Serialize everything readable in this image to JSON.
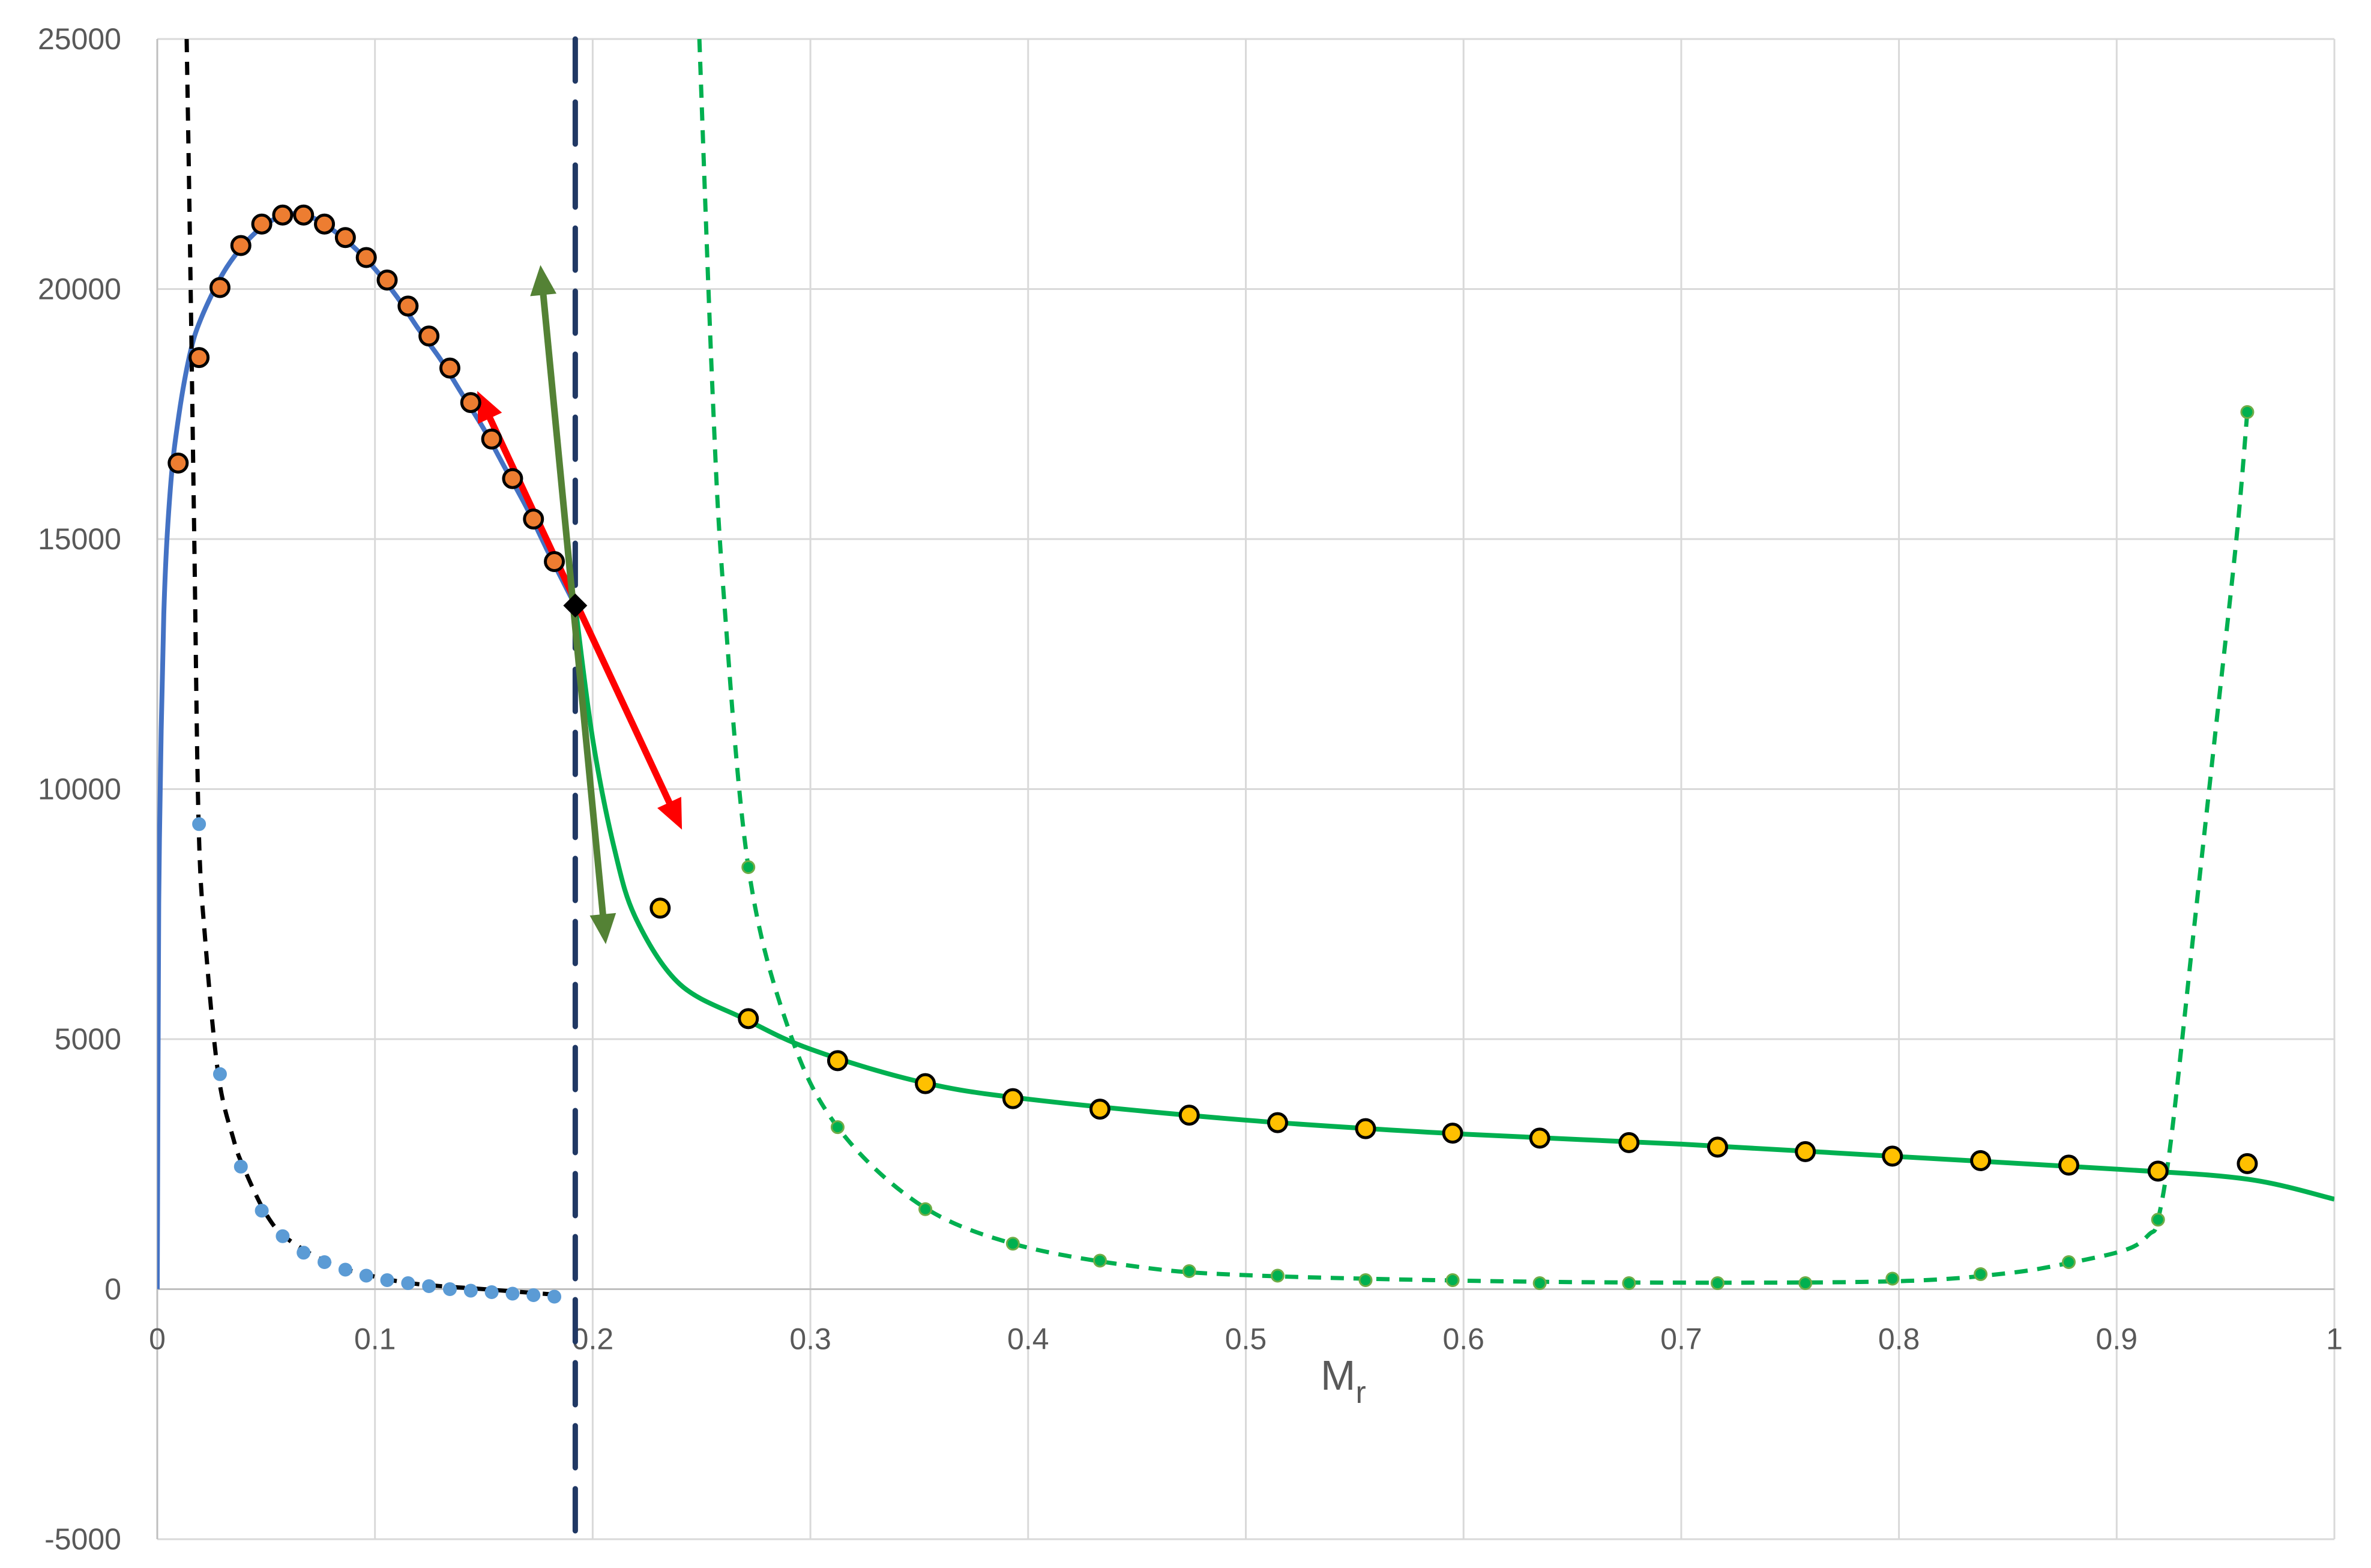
{
  "chart_data": {
    "type": "scatter",
    "title": "",
    "xlabel": "M",
    "xlabel_subscript": "r",
    "ylabel": "",
    "xlim": [
      0,
      1
    ],
    "ylim": [
      -5000,
      25000
    ],
    "xticks": [
      "0",
      "0.1",
      "0.2",
      "0.3",
      "0.4",
      "0.5",
      "0.6",
      "0.7",
      "0.8",
      "0.9",
      "1"
    ],
    "yticks": [
      "-5000",
      "0",
      "5000",
      "10000",
      "15000",
      "20000",
      "25000"
    ],
    "grid": true,
    "colors": {
      "blue": "#4472C4",
      "orange": "#ED7D31",
      "yellow": "#FFC000",
      "green": "#00B050",
      "dark_green": "#548235",
      "red": "#FF0000",
      "navy": "#203864",
      "black": "#000000",
      "grid": "#D9D9D9"
    },
    "series": [
      {
        "kind": "markers",
        "color": "#ED7D31",
        "marker": "large-circle",
        "x": [
          0.0096,
          0.0192,
          0.0288,
          0.0384,
          0.048,
          0.0576,
          0.0672,
          0.0768,
          0.0864,
          0.096,
          0.1056,
          0.1152,
          0.1248,
          0.1344,
          0.144,
          0.1536,
          0.1632,
          0.1728,
          0.1824
        ],
        "y": [
          16520,
          18630,
          20030,
          20870,
          21300,
          21480,
          21480,
          21300,
          21030,
          20630,
          20180,
          19660,
          19060,
          18420,
          17730,
          17000,
          16210,
          15400,
          14550
        ]
      },
      {
        "kind": "markers",
        "color": "#5B9BD5",
        "marker": "small-circle",
        "x": [
          0.0192,
          0.0288,
          0.0384,
          0.048,
          0.0576,
          0.0672,
          0.0768,
          0.0864,
          0.096,
          0.1056,
          0.1152,
          0.1248,
          0.1344,
          0.144,
          0.1536,
          0.1632,
          0.1728,
          0.1824
        ],
        "y": [
          9300,
          4300,
          2450,
          1570,
          1060,
          730,
          540,
          390,
          270,
          180,
          120,
          60,
          0,
          -30,
          -60,
          -90,
          -120,
          -150
        ]
      },
      {
        "kind": "markers",
        "color": "#FFC000",
        "marker": "large-circle",
        "x": [
          0.231,
          0.2715,
          0.3125,
          0.3528,
          0.393,
          0.433,
          0.474,
          0.5146,
          0.555,
          0.595,
          0.635,
          0.676,
          0.7167,
          0.757,
          0.797,
          0.8375,
          0.878,
          0.919,
          0.96
        ],
        "y": [
          7620,
          5410,
          4570,
          4110,
          3810,
          3600,
          3480,
          3330,
          3210,
          3120,
          3020,
          2930,
          2840,
          2750,
          2660,
          2570,
          2480,
          2360,
          2510
        ]
      },
      {
        "kind": "markers",
        "color": "#00B050",
        "marker": "small-circle",
        "x": [
          0.2715,
          0.3125,
          0.3528,
          0.393,
          0.433,
          0.474,
          0.5146,
          0.555,
          0.595,
          0.635,
          0.676,
          0.7167,
          0.757,
          0.797,
          0.8375,
          0.878,
          0.919,
          0.96
        ],
        "y": [
          8440,
          3240,
          1600,
          910,
          570,
          360,
          270,
          180,
          180,
          120,
          120,
          120,
          120,
          210,
          300,
          540,
          1390,
          17540
        ]
      },
      {
        "kind": "line",
        "color": "#4472C4",
        "dash": "solid",
        "x": [
          0,
          0.0005,
          0.001,
          0.003,
          0.006,
          0.01,
          0.015,
          0.02,
          0.03,
          0.04,
          0.05,
          0.06,
          0.07,
          0.08,
          0.09,
          0.1,
          0.11,
          0.12,
          0.13,
          0.14,
          0.15,
          0.16,
          0.17,
          0.18,
          0.192
        ],
        "y": [
          0,
          6000,
          9000,
          13500,
          16000,
          17500,
          18700,
          19400,
          20300,
          20900,
          21300,
          21500,
          21450,
          21200,
          20850,
          20400,
          19850,
          19200,
          18600,
          17900,
          17200,
          16400,
          15600,
          14700,
          13670
        ]
      },
      {
        "kind": "line",
        "color": "#00B050",
        "dash": "solid",
        "x": [
          0.192,
          0.2,
          0.21,
          0.22,
          0.24,
          0.27,
          0.3,
          0.35,
          0.4,
          0.5,
          0.6,
          0.7,
          0.8,
          0.9,
          0.96,
          1
        ],
        "y": [
          13670,
          11000,
          8800,
          7400,
          6100,
          5400,
          4800,
          4150,
          3800,
          3380,
          3100,
          2900,
          2650,
          2400,
          2200,
          1800
        ]
      },
      {
        "kind": "line",
        "color": "#000000",
        "dash": "short",
        "x": [
          0.0135,
          0.015,
          0.017,
          0.019,
          0.022,
          0.028,
          0.035,
          0.04,
          0.05,
          0.06,
          0.08,
          0.1,
          0.12,
          0.15,
          0.18
        ],
        "y": [
          25000,
          21000,
          15000,
          9300,
          7000,
          4300,
          3000,
          2400,
          1500,
          1000,
          500,
          250,
          100,
          0,
          -100
        ]
      },
      {
        "kind": "line",
        "color": "#00B050",
        "dash": "short",
        "x": [
          0.249,
          0.255,
          0.26,
          0.2715,
          0.29,
          0.3125,
          0.35,
          0.393,
          0.45,
          0.5,
          0.6,
          0.7,
          0.8,
          0.85,
          0.88,
          0.905,
          0.915,
          0.919,
          0.925,
          0.935,
          0.945,
          0.955,
          0.96
        ],
        "y": [
          25000,
          18000,
          14000,
          8440,
          5200,
          3240,
          1700,
          910,
          450,
          280,
          170,
          130,
          160,
          320,
          540,
          800,
          1100,
          1390,
          3000,
          7000,
          11000,
          15000,
          17540
        ]
      }
    ],
    "vertical_line": {
      "x": 0.192,
      "color": "#203864",
      "dash": "long"
    },
    "point_marker": {
      "x": 0.192,
      "y": 13670,
      "shape": "diamond",
      "color": "#000000"
    },
    "arrows": [
      {
        "color": "#FF0000",
        "from": [
          0.147,
          17960
        ],
        "to": [
          0.241,
          9190
        ],
        "heads": "both"
      },
      {
        "color": "#548235",
        "from": [
          0.176,
          20480
        ],
        "to": [
          0.206,
          6900
        ],
        "heads": "both"
      }
    ]
  }
}
